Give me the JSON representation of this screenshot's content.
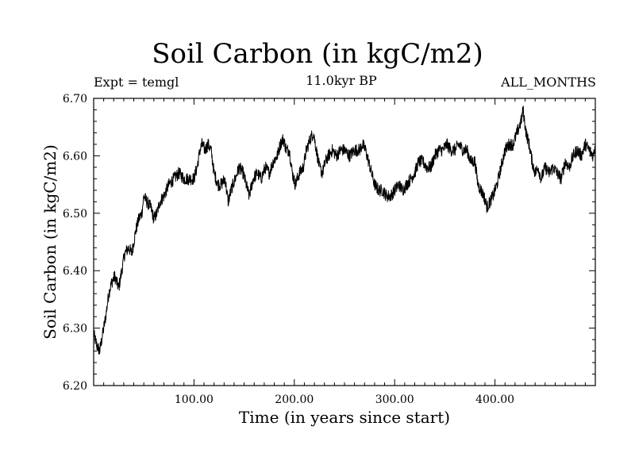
{
  "chart_data": {
    "type": "line",
    "title": "Soil Carbon (in kgC/m2)",
    "subtitle_left": "Expt = temgl",
    "subtitle_center": "11.0kyr BP",
    "subtitle_right": "ALL_MONTHS",
    "xlabel": "Time (in years since start)",
    "ylabel": "Soil Carbon (in kgC/m2)",
    "xlim": [
      0,
      500
    ],
    "ylim": [
      6.2,
      6.7
    ],
    "xticks": [
      100,
      200,
      300,
      400
    ],
    "xtick_labels": [
      "100.00",
      "200.00",
      "300.00",
      "400.00"
    ],
    "yticks": [
      6.2,
      6.3,
      6.4,
      6.5,
      6.6,
      6.7
    ],
    "ytick_labels": [
      "6.20",
      "6.30",
      "6.40",
      "6.50",
      "6.60",
      "6.70"
    ],
    "grid": false,
    "series": [
      {
        "name": "Soil Carbon",
        "color": "#000000",
        "x": [
          0,
          3,
          6,
          9,
          12,
          15,
          18,
          21,
          25,
          28,
          31,
          35,
          38,
          42,
          45,
          48,
          50,
          53,
          57,
          60,
          63,
          66,
          70,
          75,
          80,
          85,
          90,
          95,
          100,
          103,
          106,
          108,
          111,
          114,
          117,
          120,
          124,
          127,
          131,
          134,
          137,
          141,
          145,
          149,
          152,
          155,
          159,
          163,
          167,
          171,
          175,
          179,
          183,
          186,
          189,
          192,
          195,
          198,
          201,
          205,
          209,
          212,
          216,
          219,
          222,
          225,
          228,
          231,
          234,
          238,
          242,
          246,
          250,
          255,
          260,
          265,
          268,
          271,
          274,
          277,
          280,
          284,
          288,
          292,
          296,
          300,
          304,
          308,
          312,
          316,
          320,
          324,
          328,
          332,
          336,
          340,
          344,
          348,
          352,
          356,
          360,
          364,
          368,
          372,
          376,
          380,
          383,
          386,
          389,
          392,
          395,
          398,
          402,
          406,
          410,
          414,
          418,
          422,
          424,
          426,
          428,
          431,
          434,
          437,
          440,
          443,
          446,
          450,
          454,
          458,
          462,
          466,
          470,
          474,
          478,
          482,
          486,
          490,
          494,
          498,
          500
        ],
        "y": [
          6.29,
          6.27,
          6.26,
          6.29,
          6.32,
          6.36,
          6.38,
          6.39,
          6.37,
          6.4,
          6.43,
          6.44,
          6.43,
          6.47,
          6.49,
          6.5,
          6.53,
          6.52,
          6.51,
          6.49,
          6.5,
          6.52,
          6.53,
          6.55,
          6.56,
          6.57,
          6.56,
          6.56,
          6.56,
          6.58,
          6.61,
          6.62,
          6.61,
          6.62,
          6.61,
          6.57,
          6.55,
          6.55,
          6.56,
          6.52,
          6.54,
          6.56,
          6.58,
          6.57,
          6.55,
          6.53,
          6.56,
          6.57,
          6.56,
          6.58,
          6.57,
          6.59,
          6.6,
          6.62,
          6.63,
          6.61,
          6.61,
          6.57,
          6.55,
          6.57,
          6.58,
          6.61,
          6.63,
          6.64,
          6.61,
          6.58,
          6.57,
          6.59,
          6.6,
          6.61,
          6.6,
          6.61,
          6.61,
          6.6,
          6.61,
          6.61,
          6.62,
          6.61,
          6.59,
          6.57,
          6.55,
          6.54,
          6.54,
          6.53,
          6.53,
          6.54,
          6.55,
          6.54,
          6.55,
          6.56,
          6.57,
          6.59,
          6.59,
          6.58,
          6.58,
          6.6,
          6.61,
          6.61,
          6.62,
          6.61,
          6.61,
          6.62,
          6.61,
          6.61,
          6.59,
          6.59,
          6.55,
          6.54,
          6.53,
          6.51,
          6.52,
          6.53,
          6.55,
          6.58,
          6.61,
          6.62,
          6.62,
          6.64,
          6.65,
          6.66,
          6.68,
          6.64,
          6.62,
          6.59,
          6.57,
          6.58,
          6.56,
          6.58,
          6.57,
          6.58,
          6.57,
          6.56,
          6.59,
          6.58,
          6.6,
          6.61,
          6.6,
          6.62,
          6.61,
          6.6,
          6.62
        ]
      }
    ]
  }
}
